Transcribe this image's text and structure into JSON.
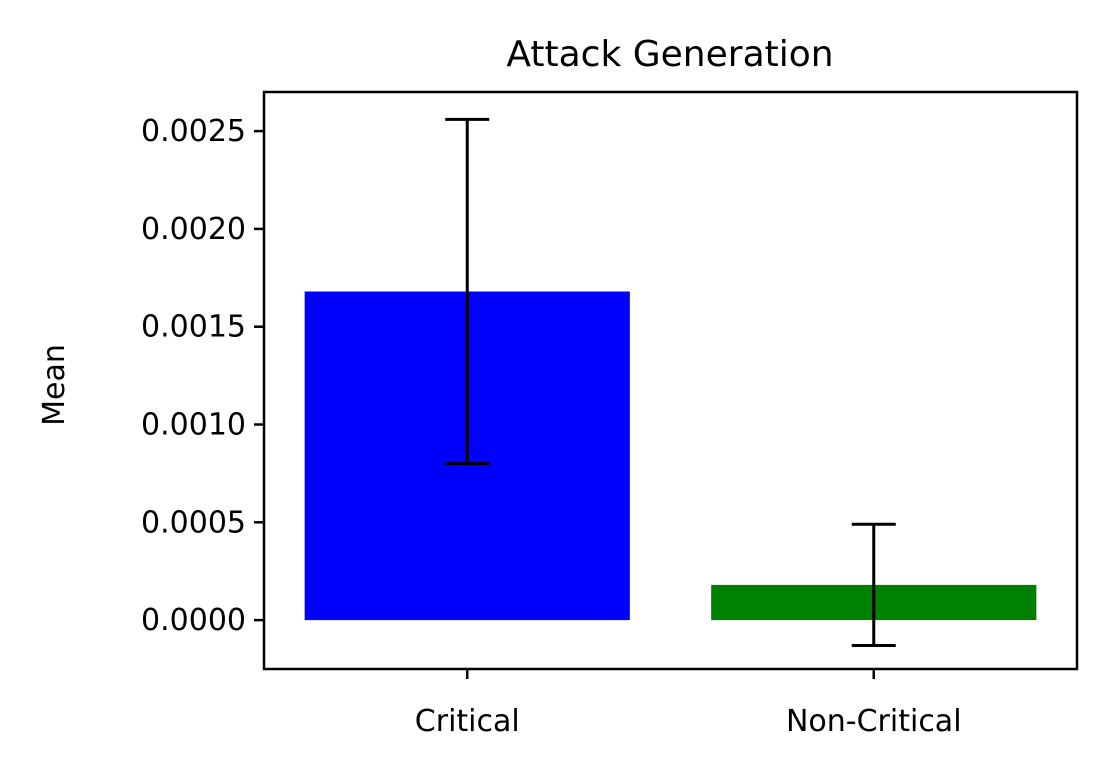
{
  "chart_data": {
    "type": "bar",
    "title": "Attack Generation",
    "xlabel": "",
    "ylabel": "Mean",
    "categories": [
      "Critical",
      "Non-Critical"
    ],
    "values": [
      0.00168,
      0.00018
    ],
    "errors": [
      0.00088,
      0.00031
    ],
    "colors": [
      "#0000ff",
      "#008000"
    ],
    "ylim": [
      -0.00025,
      0.0027
    ],
    "yticks": [
      0.0,
      0.0005,
      0.001,
      0.0015,
      0.002,
      0.0025
    ],
    "ytick_labels": [
      "0.0000",
      "0.0005",
      "0.0010",
      "0.0015",
      "0.0020",
      "0.0025"
    ],
    "grid": false
  }
}
